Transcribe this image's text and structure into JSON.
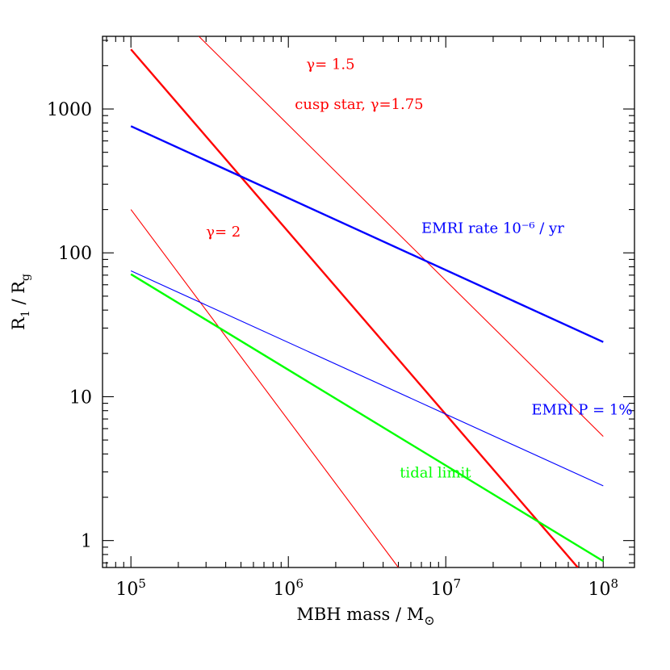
{
  "chart_data": {
    "type": "line",
    "title": "",
    "xlabel": "MBH mass / M",
    "xlabel_symbol": "⊙",
    "ylabel_main": "R",
    "ylabel_sub1": "1",
    "ylabel_mid": " / R",
    "ylabel_sub2": "g",
    "x_scale": "log",
    "y_scale": "log",
    "xlim": [
      66000,
      158000000
    ],
    "ylim": [
      0.65,
      3200
    ],
    "x_ticks": [
      {
        "value": 100000,
        "base": "10",
        "exp": "5"
      },
      {
        "value": 1000000,
        "base": "10",
        "exp": "6"
      },
      {
        "value": 10000000,
        "base": "10",
        "exp": "7"
      },
      {
        "value": 100000000,
        "base": "10",
        "exp": "8"
      }
    ],
    "y_ticks": [
      {
        "value": 1,
        "label": "1"
      },
      {
        "value": 10,
        "label": "10"
      },
      {
        "value": 100,
        "label": "100"
      },
      {
        "value": 1000,
        "label": "1000"
      }
    ],
    "grid": false,
    "legend": "none",
    "series": [
      {
        "name": "cusp star, γ=1.75",
        "color": "#ff0000",
        "width": "thick",
        "x": [
          100000,
          69000000
        ],
        "y": [
          2600,
          0.65
        ]
      },
      {
        "name": "γ= 1.5",
        "color": "#ff0000",
        "width": "thin",
        "x": [
          270000,
          100000000
        ],
        "y": [
          3200,
          5.3
        ]
      },
      {
        "name": "γ= 2",
        "color": "#ff0000",
        "width": "thin",
        "x": [
          100000,
          5000000
        ],
        "y": [
          200,
          0.65
        ]
      },
      {
        "name": "EMRI rate 10⁻⁶ / yr",
        "color": "#0000ff",
        "width": "thick",
        "x": [
          100000,
          100000000
        ],
        "y": [
          760,
          24
        ]
      },
      {
        "name": "EMRI P = 1%",
        "color": "#0000ff",
        "width": "thin",
        "x": [
          100000,
          100000000
        ],
        "y": [
          75,
          2.4
        ]
      },
      {
        "name": "tidal limit",
        "color": "#00ff00",
        "width": "thick",
        "x": [
          100000,
          100000000
        ],
        "y": [
          71,
          0.72
        ]
      }
    ],
    "annotations": [
      {
        "key": "gamma15",
        "text": "γ= 1.5",
        "color": "#ff0000",
        "x": 1300000,
        "y": 1900
      },
      {
        "key": "cusp",
        "text": "cusp star, γ=1.75",
        "color": "#ff0000",
        "x": 1100000,
        "y": 1000
      },
      {
        "key": "gamma2",
        "text": "γ= 2",
        "color": "#ff0000",
        "x": 300000,
        "y": 130
      },
      {
        "key": "emrirate",
        "text": "EMRI rate 10⁻⁶ / yr",
        "color": "#0000ff",
        "x": 7000000,
        "y": 138
      },
      {
        "key": "emrip",
        "text": "EMRI P = 1%",
        "color": "#0000ff",
        "x": 35000000,
        "y": 7.5
      },
      {
        "key": "tidal",
        "text": "tidal limit",
        "color": "#00ff00",
        "x": 5100000,
        "y": 2.75
      }
    ]
  }
}
